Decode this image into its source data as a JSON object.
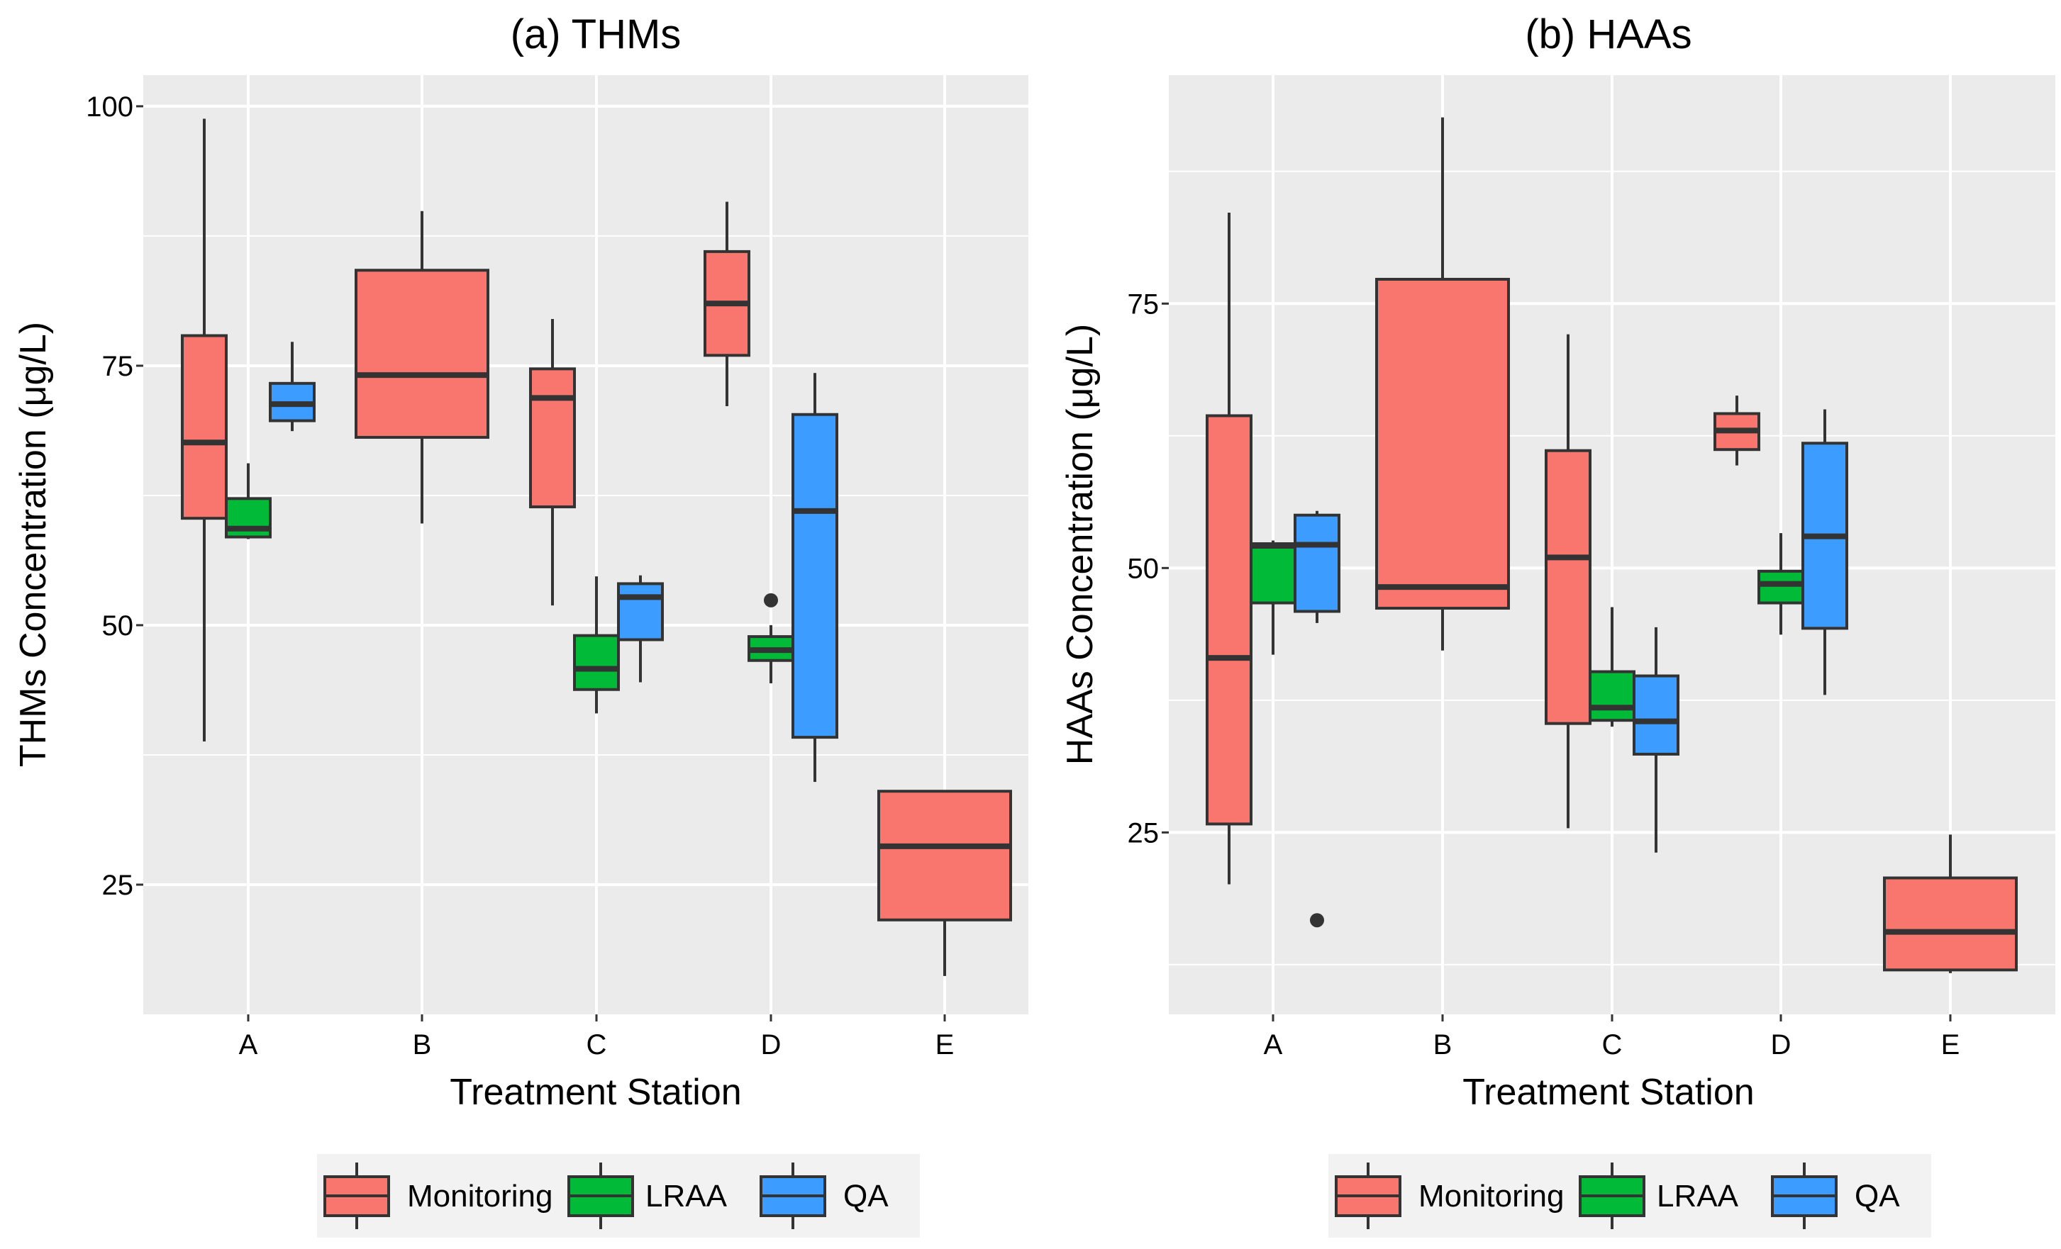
{
  "colors": {
    "panel_bg": "#EBEBEB",
    "grid": "#FFFFFF",
    "box_stroke": "#333333",
    "Monitoring": "#F8766D",
    "LRAA": "#00BA38",
    "QA": "#3C9CFF"
  },
  "legend": {
    "position": "bottom",
    "items": [
      {
        "key": "Monitoring",
        "label": "Monitoring"
      },
      {
        "key": "LRAA",
        "label": "LRAA"
      },
      {
        "key": "QA",
        "label": "QA"
      }
    ]
  },
  "chart_data": [
    {
      "type": "boxplot",
      "title": "(a) THMs",
      "xlabel": "Treatment Station",
      "ylabel": "THMs Concentration (μg/L)",
      "categories": [
        "A",
        "B",
        "C",
        "D",
        "E"
      ],
      "ylim": [
        12.5,
        103
      ],
      "yticks": [
        25,
        50,
        75,
        100
      ],
      "yminor": [
        37.5,
        62.5,
        87.5
      ],
      "grid": true,
      "series": [
        {
          "name": "Monitoring",
          "boxes": [
            {
              "category": "A",
              "min": 38.8,
              "q1": 60.3,
              "median": 67.6,
              "q3": 77.9,
              "max": 98.8,
              "outliers": []
            },
            {
              "category": "B",
              "min": 59.8,
              "q1": 68.1,
              "median": 74.1,
              "q3": 84.2,
              "max": 89.9,
              "outliers": []
            },
            {
              "category": "C",
              "min": 51.9,
              "q1": 61.4,
              "median": 71.9,
              "q3": 74.7,
              "max": 79.5,
              "outliers": []
            },
            {
              "category": "D",
              "min": 71.1,
              "q1": 76.0,
              "median": 81.0,
              "q3": 86.0,
              "max": 90.8,
              "outliers": []
            },
            {
              "category": "E",
              "min": 16.2,
              "q1": 21.6,
              "median": 28.7,
              "q3": 34.0,
              "max": 34.0,
              "outliers": []
            }
          ]
        },
        {
          "name": "LRAA",
          "boxes": [
            {
              "category": "A",
              "min": 58.3,
              "q1": 58.5,
              "median": 59.3,
              "q3": 62.2,
              "max": 65.6,
              "outliers": []
            },
            {
              "category": "C",
              "min": 41.5,
              "q1": 43.8,
              "median": 45.8,
              "q3": 49.0,
              "max": 54.7,
              "outliers": []
            },
            {
              "category": "D",
              "min": 44.4,
              "q1": 46.6,
              "median": 47.6,
              "q3": 48.9,
              "max": 50.0,
              "outliers": [
                52.4
              ]
            }
          ]
        },
        {
          "name": "QA",
          "boxes": [
            {
              "category": "A",
              "min": 68.7,
              "q1": 69.7,
              "median": 71.3,
              "q3": 73.3,
              "max": 77.3,
              "outliers": []
            },
            {
              "category": "C",
              "min": 44.5,
              "q1": 48.6,
              "median": 52.7,
              "q3": 54.0,
              "max": 54.8,
              "outliers": []
            },
            {
              "category": "D",
              "min": 34.9,
              "q1": 39.2,
              "median": 61.0,
              "q3": 70.3,
              "max": 74.3,
              "outliers": []
            }
          ]
        }
      ]
    },
    {
      "type": "boxplot",
      "title": "(b) HAAs",
      "xlabel": "Treatment Station",
      "ylabel": "HAAs Concentration (μg/L)",
      "categories": [
        "A",
        "B",
        "C",
        "D",
        "E"
      ],
      "ylim": [
        7.8,
        96.6
      ],
      "yticks": [
        25,
        50,
        75
      ],
      "yminor": [
        12.5,
        37.5,
        62.5,
        87.5
      ],
      "grid": true,
      "series": [
        {
          "name": "Monitoring",
          "boxes": [
            {
              "category": "A",
              "min": 20.1,
              "q1": 25.8,
              "median": 41.5,
              "q3": 64.4,
              "max": 83.6,
              "outliers": []
            },
            {
              "category": "B",
              "min": 42.2,
              "q1": 46.2,
              "median": 48.2,
              "q3": 77.3,
              "max": 92.6,
              "outliers": []
            },
            {
              "category": "C",
              "min": 25.4,
              "q1": 35.3,
              "median": 51.0,
              "q3": 61.1,
              "max": 72.1,
              "outliers": []
            },
            {
              "category": "D",
              "min": 59.7,
              "q1": 61.2,
              "median": 63.0,
              "q3": 64.6,
              "max": 66.3,
              "outliers": []
            },
            {
              "category": "E",
              "min": 11.7,
              "q1": 12.0,
              "median": 15.6,
              "q3": 20.7,
              "max": 24.8,
              "outliers": []
            }
          ]
        },
        {
          "name": "LRAA",
          "boxes": [
            {
              "category": "A",
              "min": 41.8,
              "q1": 46.7,
              "median": 52.1,
              "q3": 52.3,
              "max": 52.6,
              "outliers": []
            },
            {
              "category": "C",
              "min": 35.0,
              "q1": 35.6,
              "median": 36.8,
              "q3": 40.2,
              "max": 46.3,
              "outliers": []
            },
            {
              "category": "D",
              "min": 43.7,
              "q1": 46.7,
              "median": 48.5,
              "q3": 49.7,
              "max": 53.3,
              "outliers": []
            }
          ]
        },
        {
          "name": "QA",
          "boxes": [
            {
              "category": "A",
              "min": 44.8,
              "q1": 45.9,
              "median": 52.2,
              "q3": 55.0,
              "max": 55.4,
              "outliers": [
                16.7
              ]
            },
            {
              "category": "C",
              "min": 23.1,
              "q1": 32.4,
              "median": 35.5,
              "q3": 39.8,
              "max": 44.4,
              "outliers": []
            },
            {
              "category": "D",
              "min": 38.0,
              "q1": 44.3,
              "median": 53.0,
              "q3": 61.8,
              "max": 65.0,
              "outliers": []
            }
          ]
        }
      ]
    }
  ]
}
